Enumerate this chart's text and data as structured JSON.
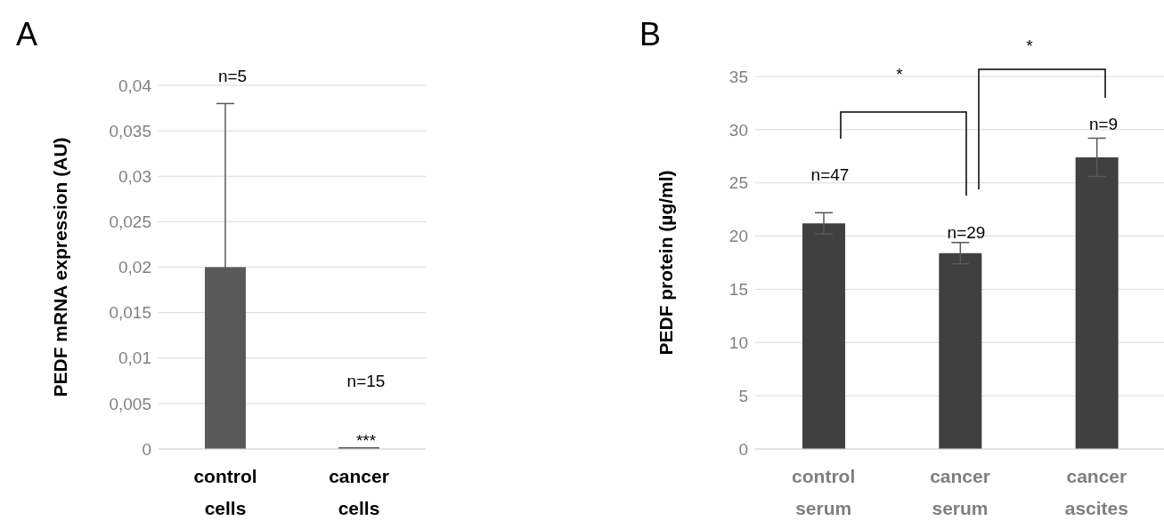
{
  "chart_data": [
    {
      "type": "bar",
      "title": "A",
      "ylabel": "PEDF mRNA expression (AU)",
      "categories": [
        "control cells",
        "cancer cells"
      ],
      "values": [
        0.02,
        0.0002
      ],
      "color": "#595959",
      "errors": [
        0.018,
        null
      ],
      "ylim": [
        0,
        0.04
      ],
      "yticks": [
        {
          "value": 0,
          "label": "0"
        },
        {
          "value": 0.005,
          "label": "0,005"
        },
        {
          "value": 0.01,
          "label": "0,01"
        },
        {
          "value": 0.015,
          "label": "0,015"
        },
        {
          "value": 0.02,
          "label": "0,02"
        },
        {
          "value": 0.025,
          "label": "0,025"
        },
        {
          "value": 0.03,
          "label": "0,03"
        },
        {
          "value": 0.035,
          "label": "0,035"
        },
        {
          "value": 0.04,
          "label": "0,04"
        }
      ],
      "grid": "y",
      "annotations": [
        "n=5",
        "n=15",
        "***"
      ]
    },
    {
      "type": "bar",
      "title": "B",
      "ylabel": "PEDF protein (µg/ml)",
      "categories": [
        "control serum",
        "cancer serum",
        "cancer ascites"
      ],
      "values": [
        21.2,
        18.4,
        27.4
      ],
      "color": "#404040",
      "errors": [
        1.0,
        1.0,
        1.8
      ],
      "ylim": [
        0,
        35
      ],
      "yticks": [
        0,
        5,
        10,
        15,
        20,
        25,
        30,
        35
      ],
      "grid": "y",
      "annotations": [
        "n=47",
        "n=29",
        "n=9",
        "*",
        "*"
      ]
    }
  ]
}
